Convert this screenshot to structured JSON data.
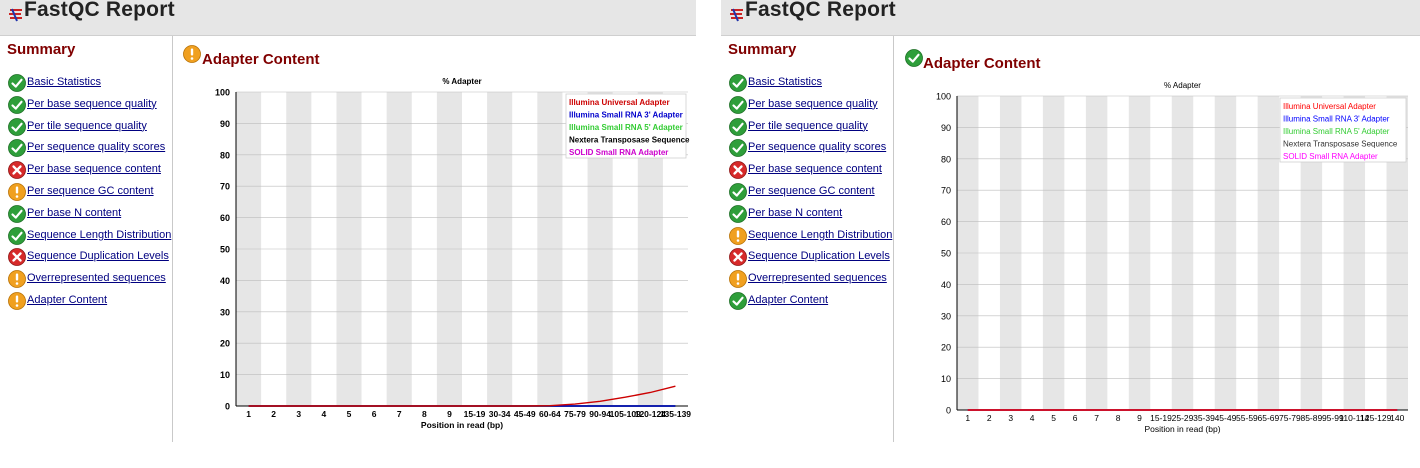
{
  "app": {
    "title": "FastQC Report"
  },
  "summary_title": "Summary",
  "panels": [
    {
      "modules": [
        {
          "label": "Basic Statistics",
          "status": "pass"
        },
        {
          "label": "Per base sequence quality",
          "status": "pass"
        },
        {
          "label": "Per tile sequence quality",
          "status": "pass"
        },
        {
          "label": "Per sequence quality scores",
          "status": "pass"
        },
        {
          "label": "Per base sequence content",
          "status": "fail"
        },
        {
          "label": "Per sequence GC content",
          "status": "warn"
        },
        {
          "label": "Per base N content",
          "status": "pass"
        },
        {
          "label": "Sequence Length Distribution",
          "status": "pass"
        },
        {
          "label": "Sequence Duplication Levels",
          "status": "fail"
        },
        {
          "label": "Overrepresented sequences",
          "status": "warn"
        },
        {
          "label": "Adapter Content",
          "status": "warn"
        }
      ],
      "section_title": "Adapter Content",
      "section_status": "warn",
      "chart_data": {
        "type": "line",
        "title": "% Adapter",
        "xlabel": "Position in read (bp)",
        "ylabel": "",
        "ylim": [
          0,
          100
        ],
        "yticks": [
          0,
          10,
          20,
          30,
          40,
          50,
          60,
          70,
          80,
          90,
          100
        ],
        "categories": [
          "1",
          "2",
          "3",
          "4",
          "5",
          "6",
          "7",
          "8",
          "9",
          "15-19",
          "30-34",
          "45-49",
          "60-64",
          "75-79",
          "90-94",
          "105-109",
          "120-124",
          "135-139"
        ],
        "legend_position": "top-right",
        "series": [
          {
            "name": "Illumina Universal Adapter",
            "color": "#cc0000",
            "values": [
              0,
              0,
              0,
              0,
              0,
              0,
              0,
              0,
              0,
              0,
              0,
              0,
              0.1,
              0.6,
              1.5,
              2.8,
              4.3,
              6.3
            ]
          },
          {
            "name": "Illumina Small RNA 3' Adapter",
            "color": "#0000cc",
            "values": [
              0,
              0,
              0,
              0,
              0,
              0,
              0,
              0,
              0,
              0,
              0,
              0,
              0,
              0,
              0,
              0,
              0,
              0
            ]
          },
          {
            "name": "Illumina Small RNA 5' Adapter",
            "color": "#33cc33",
            "values": [
              0,
              0,
              0,
              0,
              0,
              0,
              0,
              0,
              0,
              0,
              0,
              0,
              0,
              0,
              0,
              0,
              0,
              0
            ]
          },
          {
            "name": "Nextera Transposase Sequence",
            "color": "#000000",
            "values": [
              0,
              0,
              0,
              0,
              0,
              0,
              0,
              0,
              0,
              0,
              0,
              0,
              0,
              0,
              0,
              0,
              0,
              0
            ]
          },
          {
            "name": "SOLID Small RNA Adapter",
            "color": "#cc00cc",
            "values": [
              0,
              0,
              0,
              0,
              0,
              0,
              0,
              0,
              0,
              0,
              0,
              0,
              0,
              0,
              0,
              0,
              0,
              0
            ]
          }
        ]
      }
    },
    {
      "modules": [
        {
          "label": "Basic Statistics",
          "status": "pass"
        },
        {
          "label": "Per base sequence quality",
          "status": "pass"
        },
        {
          "label": "Per tile sequence quality",
          "status": "pass"
        },
        {
          "label": "Per sequence quality scores",
          "status": "pass"
        },
        {
          "label": "Per base sequence content",
          "status": "fail"
        },
        {
          "label": "Per sequence GC content",
          "status": "pass"
        },
        {
          "label": "Per base N content",
          "status": "pass"
        },
        {
          "label": "Sequence Length Distribution",
          "status": "warn"
        },
        {
          "label": "Sequence Duplication Levels",
          "status": "fail"
        },
        {
          "label": "Overrepresented sequences",
          "status": "warn"
        },
        {
          "label": "Adapter Content",
          "status": "pass"
        }
      ],
      "section_title": "Adapter Content",
      "section_status": "pass",
      "chart_data": {
        "type": "line",
        "title": "% Adapter",
        "xlabel": "Position in read (bp)",
        "ylabel": "",
        "ylim": [
          0,
          100
        ],
        "yticks": [
          0,
          10,
          20,
          30,
          40,
          50,
          60,
          70,
          80,
          90,
          100
        ],
        "categories": [
          "1",
          "2",
          "3",
          "4",
          "5",
          "6",
          "7",
          "8",
          "9",
          "15-19",
          "25-29",
          "35-39",
          "45-49",
          "55-59",
          "65-69",
          "75-79",
          "85-89",
          "95-99",
          "110-114",
          "125-129",
          "140"
        ],
        "legend_position": "top-right",
        "series": [
          {
            "name": "Illumina Universal Adapter",
            "color": "#ff0000",
            "values": [
              0,
              0,
              0,
              0,
              0,
              0,
              0,
              0,
              0,
              0,
              0,
              0,
              0,
              0,
              0,
              0,
              0,
              0,
              0,
              0,
              0
            ]
          },
          {
            "name": "Illumina Small RNA 3' Adapter",
            "color": "#0000ff",
            "values": [
              0,
              0,
              0,
              0,
              0,
              0,
              0,
              0,
              0,
              0,
              0,
              0,
              0,
              0,
              0,
              0,
              0,
              0,
              0,
              0,
              0
            ]
          },
          {
            "name": "Illumina Small RNA 5' Adapter",
            "color": "#33cc33",
            "values": [
              0,
              0,
              0,
              0,
              0,
              0,
              0,
              0,
              0,
              0,
              0,
              0,
              0,
              0,
              0,
              0,
              0,
              0,
              0,
              0,
              0
            ]
          },
          {
            "name": "Nextera Transposase Sequence",
            "color": "#333333",
            "values": [
              0,
              0,
              0,
              0,
              0,
              0,
              0,
              0,
              0,
              0,
              0,
              0,
              0,
              0,
              0,
              0,
              0,
              0,
              0,
              0,
              0
            ]
          },
          {
            "name": "SOLID Small RNA Adapter",
            "color": "#ff00ff",
            "values": [
              0,
              0,
              0,
              0,
              0,
              0,
              0,
              0,
              0,
              0,
              0,
              0,
              0,
              0,
              0,
              0,
              0,
              0,
              0,
              0,
              0
            ]
          }
        ]
      }
    }
  ]
}
